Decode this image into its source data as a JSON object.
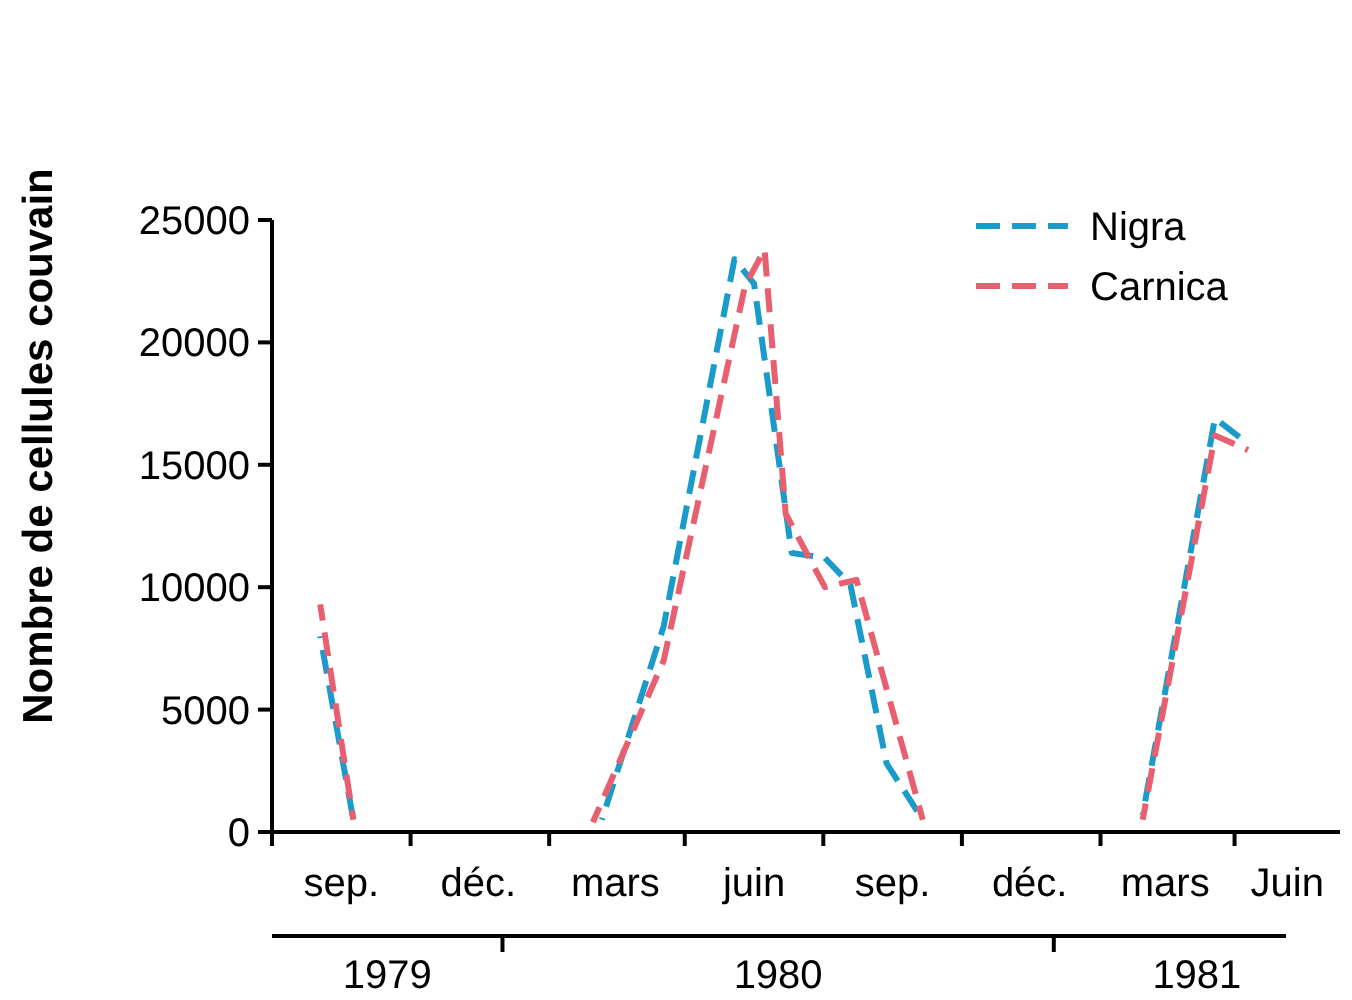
{
  "chart_data": {
    "type": "line",
    "ylabel": "Nombre de cellules couvain",
    "xlim": [
      "1979-08-01",
      "1981-07-10"
    ],
    "xticks": [
      {
        "value": "1979-08-01",
        "label": null
      },
      {
        "value": "1979-09-16",
        "label": "sep."
      },
      {
        "value": "1979-11-01",
        "label": null
      },
      {
        "value": "1979-12-16",
        "label": "déc."
      },
      {
        "value": "1980-02-01",
        "label": null
      },
      {
        "value": "1980-03-16",
        "label": "mars"
      },
      {
        "value": "1980-05-01",
        "label": null
      },
      {
        "value": "1980-06-16",
        "label": "juin"
      },
      {
        "value": "1980-08-01",
        "label": null
      },
      {
        "value": "1980-09-16",
        "label": "sep."
      },
      {
        "value": "1980-11-01",
        "label": null
      },
      {
        "value": "1980-12-16",
        "label": "déc."
      },
      {
        "value": "1981-02-01",
        "label": null
      },
      {
        "value": "1981-03-16",
        "label": "mars"
      },
      {
        "value": "1981-05-01",
        "label": null
      },
      {
        "value": "1981-06-05",
        "label": "Juin"
      }
    ],
    "ylim": [
      0,
      25000
    ],
    "yticks": [
      0,
      5000,
      10000,
      15000,
      20000,
      25000
    ],
    "grid": false,
    "legend": "top right",
    "line_style": "dashed",
    "marker": "none",
    "annotations": [
      "1979",
      "1980",
      "1981"
    ],
    "series": [
      {
        "name": "Nigra",
        "color": "#1a9bc9",
        "x": [
          "1979-09-02",
          "1979-09-24",
          "1979-12-15",
          "1980-03-07",
          "1980-04-17",
          "1980-06-03",
          "1980-06-16",
          "1980-07-11",
          "1980-08-02",
          "1980-08-19",
          "1980-09-12",
          "1980-10-06",
          "1980-12-15",
          "1981-03-01",
          "1981-04-18",
          "1981-05-07"
        ],
        "values": [
          8000,
          500,
          null,
          500,
          8400,
          23400,
          22400,
          11400,
          11200,
          10100,
          2800,
          500,
          null,
          700,
          16900,
          16000
        ]
      },
      {
        "name": "Carnica",
        "color": "#e8606f",
        "x": [
          "1979-09-02",
          "1979-09-24",
          "1979-12-15",
          "1980-03-01",
          "1980-04-17",
          "1980-06-10",
          "1980-06-23",
          "1980-07-07",
          "1980-08-02",
          "1980-08-23",
          "1980-10-06",
          "1980-12-15",
          "1981-03-01",
          "1981-04-18",
          "1981-05-10"
        ],
        "values": [
          9300,
          500,
          null,
          400,
          7000,
          22300,
          23800,
          13000,
          10000,
          10300,
          500,
          null,
          500,
          16200,
          15600
        ]
      }
    ]
  }
}
